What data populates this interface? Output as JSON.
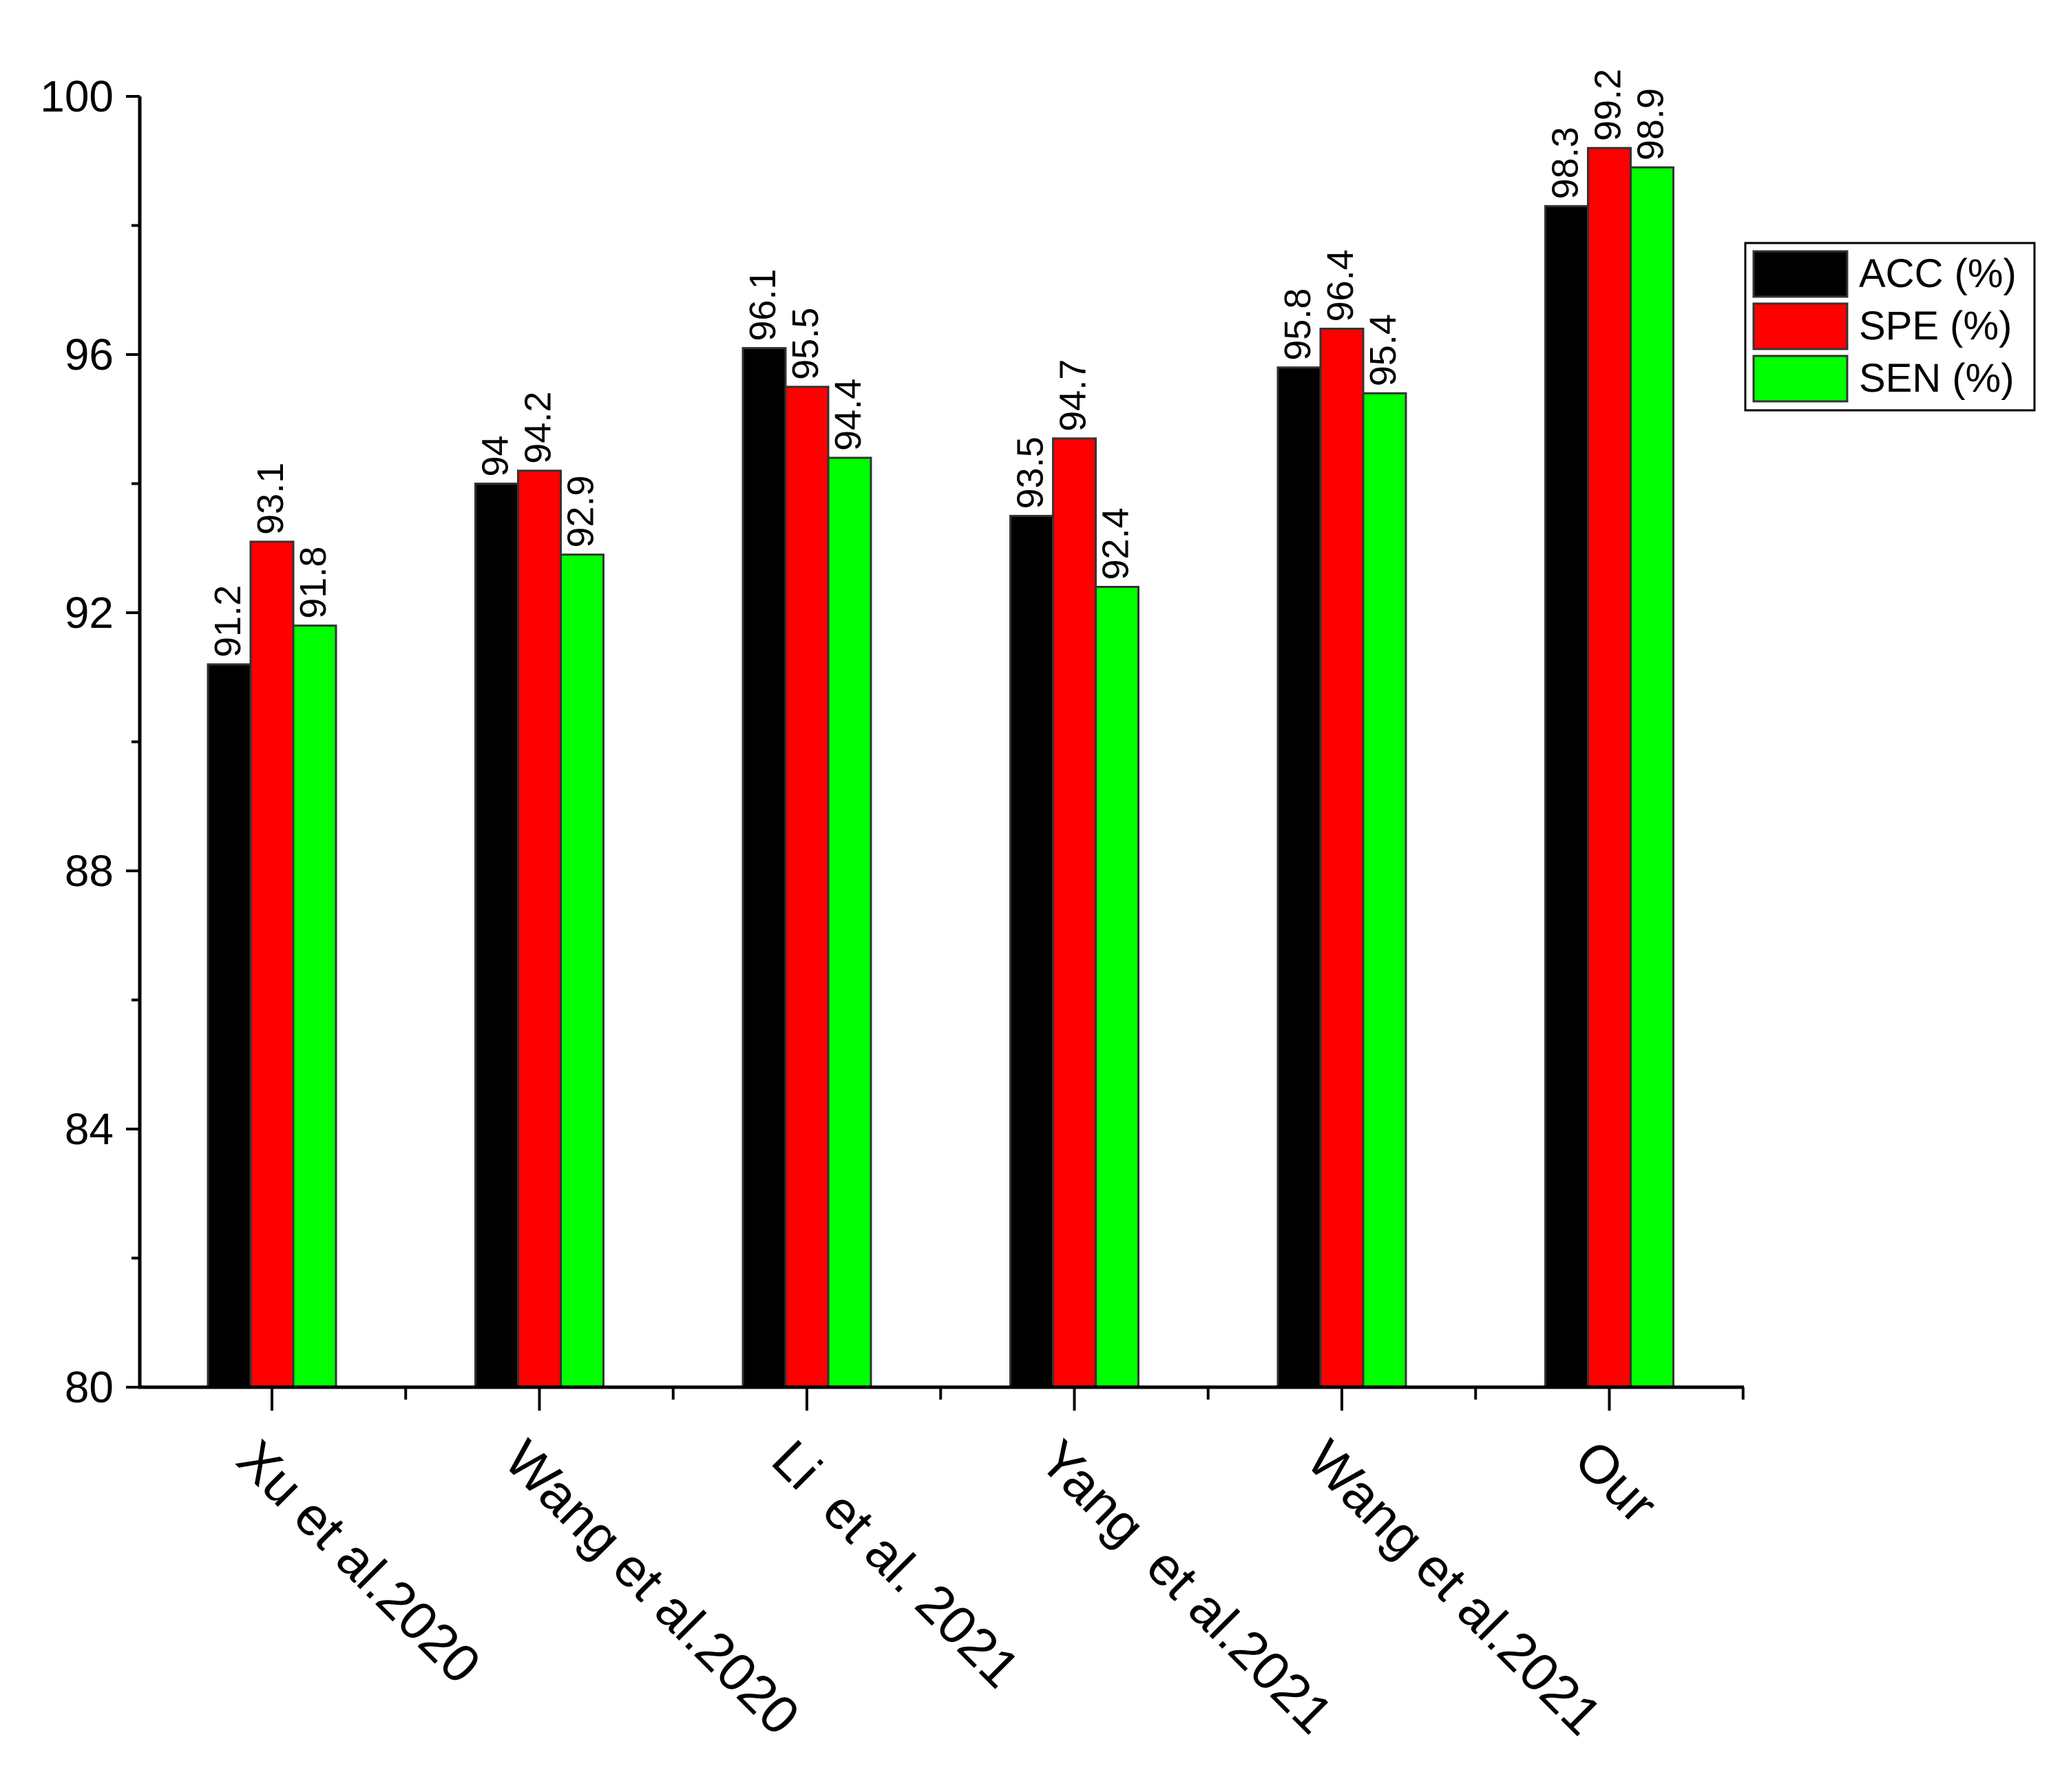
{
  "chart_data": {
    "type": "bar",
    "title": "",
    "xlabel": "",
    "ylabel": "",
    "ylim": [
      80,
      100
    ],
    "yticks": [
      "80",
      "84",
      "88",
      "92",
      "96",
      "100"
    ],
    "categories": [
      "Xu et al.2020",
      "Wang et al.2020",
      "Li  et al. 2021",
      "Yang  et al.2021",
      "Wang et al.2021",
      "Our"
    ],
    "series": [
      {
        "name": "ACC (%)",
        "color": "#000000",
        "values": [
          91.2,
          94,
          96.1,
          93.5,
          95.8,
          98.3
        ],
        "labels": [
          "91.2",
          "94",
          "96.1",
          "93.5",
          "95.8",
          "98.3"
        ]
      },
      {
        "name": "SPE (%)",
        "color": "#ff0000",
        "values": [
          93.1,
          94.2,
          95.5,
          94.7,
          96.4,
          99.2
        ],
        "labels": [
          "93.1",
          "94.2",
          "95.5",
          "94.7",
          "96.4",
          "99.2"
        ]
      },
      {
        "name": "SEN (%)",
        "color": "#00ff00",
        "values": [
          91.8,
          92.9,
          94.4,
          92.4,
          95.4,
          98.9
        ],
        "labels": [
          "91.8",
          "92.9",
          "94.4",
          "92.4",
          "95.4",
          "98.9"
        ]
      }
    ],
    "legend": "right",
    "grid": false
  }
}
